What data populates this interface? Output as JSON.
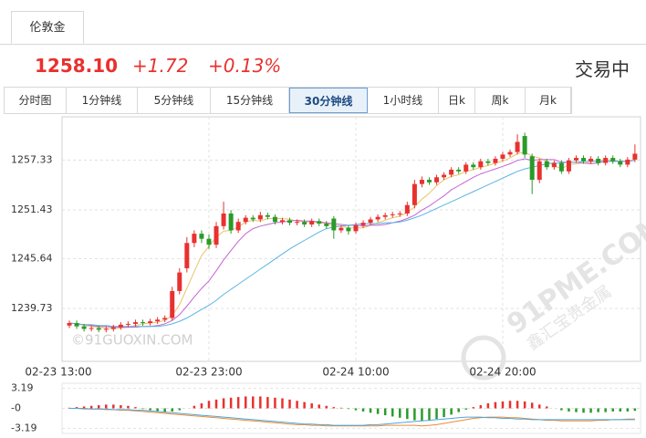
{
  "tab": "伦敦金",
  "quote": {
    "price": "1258.10",
    "change": "+1.72",
    "change_pct": "+0.13%",
    "status": "交易中"
  },
  "periods": {
    "items": [
      "分时图",
      "1分钟线",
      "5分钟线",
      "15分钟线",
      "30分钟线",
      "1小时线",
      "日k",
      "周k",
      "月k"
    ],
    "selected": 4
  },
  "watermarks": [
    "©91GUOXIN.COM",
    "91PME.COM",
    "鑫汇宝贵金属"
  ],
  "chart_data": [
    {
      "type": "candlestick",
      "up_color": "#e8312f",
      "down_color": "#2a9a2a",
      "categories": [
        "02-23 13:00",
        null,
        null,
        null,
        null,
        null,
        null,
        null,
        null,
        null,
        null,
        null,
        null,
        null,
        null,
        null,
        null,
        null,
        null,
        "02-23 23:00",
        null,
        null,
        null,
        null,
        null,
        null,
        null,
        null,
        null,
        null,
        null,
        null,
        null,
        null,
        null,
        null,
        null,
        null,
        null,
        "02-24 10:00",
        null,
        null,
        null,
        null,
        null,
        null,
        null,
        null,
        null,
        null,
        null,
        null,
        null,
        null,
        null,
        null,
        null,
        null,
        null,
        "02-24 20:00",
        null,
        null,
        null,
        null,
        null,
        null,
        null,
        null,
        null,
        null,
        null,
        null,
        null,
        null,
        null,
        null,
        null,
        null
      ],
      "open": [
        1237.7,
        1238.0,
        1237.6,
        1237.3,
        1237.4,
        1237.2,
        1237.3,
        1237.5,
        1237.8,
        1237.9,
        1238.1,
        1238.0,
        1238.2,
        1238.4,
        1238.6,
        1241.8,
        1244.5,
        1247.5,
        1248.6,
        1248.0,
        1247.3,
        1249.5,
        1251.0,
        1249.0,
        1250.0,
        1250.5,
        1250.3,
        1250.8,
        1250.6,
        1250.0,
        1250.2,
        1249.9,
        1250.0,
        1249.7,
        1250.1,
        1249.8,
        1250.4,
        1249.0,
        1249.3,
        1248.9,
        1249.6,
        1249.9,
        1250.3,
        1250.6,
        1250.8,
        1250.9,
        1251.0,
        1252.0,
        1254.5,
        1255.0,
        1254.7,
        1255.3,
        1255.6,
        1256.2,
        1256.0,
        1256.8,
        1256.5,
        1257.2,
        1257.0,
        1257.5,
        1258.0,
        1258.3,
        1260.2,
        1257.8,
        1255.0,
        1257.2,
        1256.5,
        1257.0,
        1256.0,
        1257.3,
        1257.6,
        1257.2,
        1257.5,
        1257.0,
        1257.6,
        1257.2,
        1256.8,
        1257.4
      ],
      "high": [
        1238.3,
        1238.3,
        1237.9,
        1237.7,
        1237.7,
        1237.6,
        1237.8,
        1238.1,
        1238.2,
        1238.4,
        1238.4,
        1238.5,
        1238.7,
        1238.9,
        1242.3,
        1244.5,
        1248.2,
        1249.0,
        1249.0,
        1248.5,
        1250.0,
        1252.4,
        1251.4,
        1250.4,
        1250.8,
        1250.8,
        1251.2,
        1251.1,
        1250.9,
        1250.5,
        1250.5,
        1250.3,
        1250.3,
        1250.4,
        1250.4,
        1250.1,
        1250.7,
        1249.6,
        1249.6,
        1249.9,
        1250.2,
        1250.6,
        1250.9,
        1251.1,
        1251.2,
        1251.3,
        1252.4,
        1255.0,
        1255.4,
        1255.3,
        1255.6,
        1255.9,
        1256.5,
        1256.5,
        1257.1,
        1257.1,
        1257.5,
        1257.5,
        1257.8,
        1258.3,
        1258.6,
        1260.4,
        1260.6,
        1258.1,
        1257.5,
        1257.5,
        1257.3,
        1257.3,
        1257.6,
        1257.9,
        1257.9,
        1257.8,
        1257.8,
        1257.9,
        1257.9,
        1257.5,
        1257.7,
        1259.2
      ],
      "low": [
        1237.4,
        1237.3,
        1237.0,
        1237.0,
        1236.9,
        1236.9,
        1237.0,
        1237.2,
        1237.5,
        1237.6,
        1237.7,
        1237.7,
        1237.9,
        1238.1,
        1238.3,
        1241.4,
        1244.0,
        1247.0,
        1247.5,
        1246.8,
        1246.9,
        1249.1,
        1248.6,
        1248.7,
        1249.7,
        1250.0,
        1250.0,
        1250.3,
        1249.7,
        1249.7,
        1249.6,
        1249.6,
        1249.4,
        1249.4,
        1249.5,
        1249.2,
        1248.0,
        1248.7,
        1248.5,
        1248.6,
        1249.3,
        1249.6,
        1250.0,
        1250.3,
        1250.5,
        1250.6,
        1250.7,
        1251.6,
        1254.1,
        1254.4,
        1254.4,
        1255.0,
        1255.3,
        1255.7,
        1255.7,
        1256.2,
        1256.2,
        1256.7,
        1256.7,
        1257.2,
        1257.7,
        1258.0,
        1257.6,
        1253.3,
        1254.6,
        1256.2,
        1256.2,
        1255.7,
        1255.7,
        1257.0,
        1256.9,
        1256.9,
        1256.7,
        1256.7,
        1256.9,
        1256.5,
        1256.5,
        1257.1
      ],
      "close": [
        1238.0,
        1237.6,
        1237.3,
        1237.4,
        1237.2,
        1237.3,
        1237.5,
        1237.8,
        1237.9,
        1238.1,
        1238.0,
        1238.2,
        1238.4,
        1238.6,
        1241.8,
        1244.0,
        1247.5,
        1248.6,
        1248.0,
        1247.3,
        1249.5,
        1251.0,
        1249.0,
        1250.0,
        1250.5,
        1250.3,
        1250.8,
        1250.6,
        1250.0,
        1250.2,
        1249.9,
        1250.0,
        1249.7,
        1250.1,
        1249.8,
        1249.5,
        1249.0,
        1249.3,
        1248.9,
        1249.6,
        1249.9,
        1250.3,
        1250.6,
        1250.8,
        1250.9,
        1251.0,
        1252.0,
        1254.5,
        1255.0,
        1254.7,
        1255.3,
        1255.6,
        1256.2,
        1256.0,
        1256.8,
        1256.5,
        1257.2,
        1257.0,
        1257.5,
        1258.0,
        1258.3,
        1259.5,
        1258.0,
        1255.0,
        1257.2,
        1256.5,
        1257.0,
        1256.0,
        1257.3,
        1257.6,
        1257.2,
        1257.5,
        1257.0,
        1257.6,
        1257.2,
        1256.8,
        1257.4,
        1258.1
      ],
      "series": [
        {
          "color": "#e8c468",
          "values": [
            1238.0,
            1237.9,
            1237.7,
            1237.6,
            1237.5,
            1237.4,
            1237.3,
            1237.4,
            1237.5,
            1237.7,
            1237.9,
            1238.0,
            1238.1,
            1238.3,
            1238.9,
            1240.2,
            1242.1,
            1244.1,
            1246.0,
            1247.1,
            1248.2,
            1248.9,
            1249.0,
            1249.4,
            1250.0,
            1250.2,
            1250.1,
            1250.4,
            1250.4,
            1250.4,
            1250.3,
            1250.1,
            1250.0,
            1250.0,
            1249.9,
            1249.8,
            1249.6,
            1249.5,
            1249.3,
            1249.3,
            1249.3,
            1249.6,
            1249.9,
            1250.2,
            1250.5,
            1250.7,
            1251.1,
            1251.8,
            1252.7,
            1253.4,
            1254.3,
            1255.0,
            1255.4,
            1255.6,
            1256.0,
            1256.2,
            1256.5,
            1256.7,
            1257.0,
            1257.2,
            1257.6,
            1258.1,
            1258.3,
            1257.8,
            1257.6,
            1257.2,
            1256.7,
            1256.3,
            1256.8,
            1256.9,
            1257.0,
            1257.1,
            1257.3,
            1257.4,
            1257.3,
            1257.2,
            1257.2,
            1257.4
          ]
        },
        {
          "color": "#c564d4",
          "values": [
            1238.0,
            1237.9,
            1237.8,
            1237.7,
            1237.6,
            1237.6,
            1237.5,
            1237.5,
            1237.5,
            1237.5,
            1237.6,
            1237.6,
            1237.7,
            1237.9,
            1238.3,
            1239.0,
            1240.0,
            1241.1,
            1242.1,
            1243.0,
            1244.2,
            1245.5,
            1246.6,
            1247.7,
            1248.6,
            1249.2,
            1249.5,
            1249.7,
            1249.9,
            1250.0,
            1250.1,
            1250.2,
            1250.1,
            1250.1,
            1250.0,
            1249.9,
            1249.8,
            1249.7,
            1249.6,
            1249.6,
            1249.5,
            1249.6,
            1249.6,
            1249.7,
            1249.9,
            1250.1,
            1250.4,
            1250.8,
            1251.4,
            1251.9,
            1252.5,
            1253.1,
            1253.8,
            1254.3,
            1254.8,
            1255.3,
            1255.7,
            1256.0,
            1256.3,
            1256.6,
            1256.9,
            1257.3,
            1257.5,
            1257.3,
            1257.4,
            1257.4,
            1257.4,
            1257.1,
            1257.1,
            1257.1,
            1257.0,
            1256.9,
            1257.0,
            1257.2,
            1257.2,
            1257.2,
            1257.2,
            1257.3
          ]
        },
        {
          "color": "#5ab4e4",
          "values": [
            1238.0,
            1237.9,
            1237.8,
            1237.8,
            1237.7,
            1237.7,
            1237.6,
            1237.6,
            1237.6,
            1237.6,
            1237.6,
            1237.6,
            1237.6,
            1237.7,
            1237.9,
            1238.2,
            1238.6,
            1239.1,
            1239.6,
            1240.1,
            1240.7,
            1241.4,
            1242.0,
            1242.6,
            1243.2,
            1243.8,
            1244.4,
            1245.0,
            1245.6,
            1246.2,
            1246.8,
            1247.3,
            1247.8,
            1248.3,
            1248.8,
            1249.2,
            1249.4,
            1249.5,
            1249.6,
            1249.7,
            1249.8,
            1249.8,
            1249.8,
            1249.9,
            1249.9,
            1250.0,
            1250.2,
            1250.5,
            1250.8,
            1251.2,
            1251.6,
            1252.0,
            1252.4,
            1252.8,
            1253.2,
            1253.6,
            1254.0,
            1254.4,
            1254.8,
            1255.2,
            1255.6,
            1256.0,
            1256.3,
            1256.5,
            1256.7,
            1256.9,
            1257.0,
            1257.0,
            1257.1,
            1257.1,
            1257.2,
            1257.2,
            1257.2,
            1257.2,
            1257.2,
            1257.2,
            1257.2,
            1257.3
          ]
        }
      ],
      "ylim": [
        1233.45,
        1262.48
      ],
      "yticks": [
        1257.33,
        1251.43,
        1245.64,
        1239.73
      ],
      "grid": true
    },
    {
      "type": "macd",
      "up_color": "#e8312f",
      "down_color": "#2a9a2a",
      "values": [
        0.1,
        0.2,
        0.3,
        0.4,
        0.5,
        0.6,
        0.6,
        0.5,
        0.4,
        0.2,
        -0.1,
        -0.3,
        -0.5,
        -0.6,
        -0.5,
        -0.3,
        0.0,
        0.4,
        0.8,
        1.2,
        1.4,
        1.6,
        1.7,
        1.8,
        1.9,
        1.9,
        1.9,
        1.8,
        1.7,
        1.6,
        1.4,
        1.2,
        1.0,
        0.8,
        0.6,
        0.4,
        0.2,
        0.1,
        -0.1,
        -0.3,
        -0.5,
        -0.7,
        -0.9,
        -1.1,
        -1.3,
        -1.5,
        -1.7,
        -1.9,
        -2.0,
        -1.9,
        -1.7,
        -1.4,
        -1.0,
        -0.6,
        -0.2,
        0.2,
        0.5,
        0.8,
        1.0,
        1.1,
        1.2,
        1.2,
        1.1,
        0.9,
        0.6,
        0.3,
        0.0,
        -0.3,
        -0.5,
        -0.6,
        -0.7,
        -0.7,
        -0.6,
        -0.6,
        -0.5,
        -0.5,
        -0.5,
        -0.4
      ],
      "series": [
        {
          "color": "#f08a30",
          "values": [
            0.0,
            0.0,
            -0.1,
            -0.1,
            -0.1,
            -0.2,
            -0.2,
            -0.3,
            -0.3,
            -0.4,
            -0.5,
            -0.6,
            -0.7,
            -0.8,
            -0.9,
            -1.0,
            -1.1,
            -1.2,
            -1.3,
            -1.4,
            -1.5,
            -1.6,
            -1.7,
            -1.8,
            -1.9,
            -2.0,
            -2.1,
            -2.2,
            -2.3,
            -2.4,
            -2.5,
            -2.6,
            -2.6,
            -2.7,
            -2.7,
            -2.8,
            -2.8,
            -2.8,
            -2.8,
            -2.8,
            -2.8,
            -2.8,
            -2.8,
            -2.7,
            -2.7,
            -2.7,
            -2.7,
            -2.7,
            -2.8,
            -2.7,
            -2.6,
            -2.4,
            -2.2,
            -2.0,
            -1.8,
            -1.6,
            -1.5,
            -1.4,
            -1.4,
            -1.4,
            -1.5,
            -1.5,
            -1.6,
            -1.7,
            -1.8,
            -1.9,
            -1.9,
            -2.0,
            -2.0,
            -2.0,
            -2.0,
            -2.0,
            -1.9,
            -1.9,
            -1.8,
            -1.8,
            -1.7,
            -1.7
          ]
        },
        {
          "color": "#4aa6e0",
          "values": [
            0.0,
            0.0,
            0.0,
            -0.1,
            -0.1,
            -0.1,
            -0.2,
            -0.2,
            -0.2,
            -0.3,
            -0.3,
            -0.4,
            -0.5,
            -0.6,
            -0.7,
            -0.8,
            -0.9,
            -1.0,
            -1.1,
            -1.2,
            -1.3,
            -1.4,
            -1.5,
            -1.6,
            -1.7,
            -1.8,
            -1.9,
            -2.0,
            -2.1,
            -2.2,
            -2.3,
            -2.4,
            -2.5,
            -2.5,
            -2.6,
            -2.6,
            -2.7,
            -2.7,
            -2.7,
            -2.7,
            -2.7,
            -2.6,
            -2.6,
            -2.5,
            -2.4,
            -2.3,
            -2.2,
            -2.1,
            -2.0,
            -1.9,
            -1.8,
            -1.7,
            -1.6,
            -1.5,
            -1.4,
            -1.4,
            -1.4,
            -1.5,
            -1.5,
            -1.6,
            -1.6,
            -1.7,
            -1.7,
            -1.8,
            -1.8,
            -1.8,
            -1.8,
            -1.8,
            -1.8,
            -1.8,
            -1.8,
            -1.8,
            -1.8,
            -1.8,
            -1.8,
            -1.8,
            -1.8,
            -1.8
          ]
        }
      ],
      "ylim": [
        -4,
        4
      ],
      "yticks": [
        3.19,
        {
          "value": 0,
          "label": "-0"
        },
        -3.19
      ],
      "grid": true
    }
  ]
}
